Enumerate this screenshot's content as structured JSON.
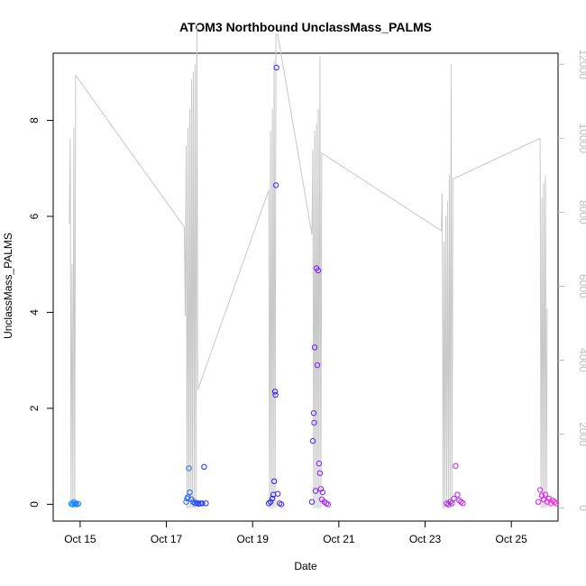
{
  "chart_data": {
    "type": "scatter",
    "title": "ATOM3 Northbound UnclassMass_PALMS",
    "xlabel": "Date",
    "ylabel": "UnclassMass_PALMS",
    "x_ticks": [
      "Oct 15",
      "Oct 17",
      "Oct 19",
      "Oct 21",
      "Oct 23",
      "Oct 25"
    ],
    "y_ticks": [
      "0",
      "2",
      "4",
      "6",
      "8"
    ],
    "y2_ticks": [
      "0",
      "2000",
      "4000",
      "6000",
      "8000",
      "10000",
      "12000"
    ],
    "xlim": [
      "Oct 14 9:00",
      "Oct 26 2:00"
    ],
    "ylim": [
      -0.35,
      9.4
    ],
    "y2lim": [
      -350,
      12300
    ],
    "right_axis_series": "altitude",
    "colors": {
      "points_start": "#1ea0ff",
      "points_mid1": "#1e1eff",
      "points_mid2": "#9b1eff",
      "points_end": "#ff1ee6",
      "altitude_line": "#c8c8c8",
      "axis": "#000000",
      "right_axis": "#bdbdbd"
    },
    "series": [
      {
        "kind": "points",
        "marker": "open-circle",
        "points": [
          {
            "x": "Oct 14 19:00",
            "y": 0.01
          },
          {
            "x": "Oct 14 19:30",
            "y": 0.02
          },
          {
            "x": "Oct 14 20:00",
            "y": 0.0
          },
          {
            "x": "Oct 14 20:30",
            "y": 0.05
          },
          {
            "x": "Oct 14 21:00",
            "y": 0.01
          },
          {
            "x": "Oct 14 21:30",
            "y": 0.02
          },
          {
            "x": "Oct 14 22:00",
            "y": 0.0
          },
          {
            "x": "Oct 14 23:00",
            "y": 0.01
          },
          {
            "x": "Oct 17 11:00",
            "y": 0.05
          },
          {
            "x": "Oct 17 11:30",
            "y": 0.12
          },
          {
            "x": "Oct 17 12:00",
            "y": 0.15
          },
          {
            "x": "Oct 17 12:30",
            "y": 0.75
          },
          {
            "x": "Oct 17 13:00",
            "y": 0.25
          },
          {
            "x": "Oct 17 14:00",
            "y": 0.1
          },
          {
            "x": "Oct 17 15:00",
            "y": 0.05
          },
          {
            "x": "Oct 17 16:00",
            "y": 0.02
          },
          {
            "x": "Oct 17 17:00",
            "y": 0.03
          },
          {
            "x": "Oct 17 18:00",
            "y": 0.01
          },
          {
            "x": "Oct 17 19:00",
            "y": 0.02
          },
          {
            "x": "Oct 17 20:00",
            "y": 0.02
          },
          {
            "x": "Oct 17 21:00",
            "y": 0.78
          },
          {
            "x": "Oct 17 22:00",
            "y": 0.02
          },
          {
            "x": "Oct 19 9:00",
            "y": 0.02
          },
          {
            "x": "Oct 19 10:00",
            "y": 0.05
          },
          {
            "x": "Oct 19 11:00",
            "y": 0.12
          },
          {
            "x": "Oct 19 11:30",
            "y": 0.2
          },
          {
            "x": "Oct 19 12:00",
            "y": 0.48
          },
          {
            "x": "Oct 19 12:30",
            "y": 2.35
          },
          {
            "x": "Oct 19 12:45",
            "y": 2.28
          },
          {
            "x": "Oct 19 13:00",
            "y": 6.65
          },
          {
            "x": "Oct 19 13:15",
            "y": 9.1
          },
          {
            "x": "Oct 19 14:00",
            "y": 0.22
          },
          {
            "x": "Oct 19 15:00",
            "y": 0.02
          },
          {
            "x": "Oct 19 16:00",
            "y": 0.0
          },
          {
            "x": "Oct 20 9:00",
            "y": 0.05
          },
          {
            "x": "Oct 20 9:30",
            "y": 1.32
          },
          {
            "x": "Oct 20 10:00",
            "y": 1.9
          },
          {
            "x": "Oct 20 10:15",
            "y": 1.7
          },
          {
            "x": "Oct 20 10:30",
            "y": 3.27
          },
          {
            "x": "Oct 20 11:00",
            "y": 0.28
          },
          {
            "x": "Oct 20 11:30",
            "y": 4.92
          },
          {
            "x": "Oct 20 12:00",
            "y": 2.9
          },
          {
            "x": "Oct 20 12:30",
            "y": 4.87
          },
          {
            "x": "Oct 20 13:00",
            "y": 0.85
          },
          {
            "x": "Oct 20 13:30",
            "y": 0.65
          },
          {
            "x": "Oct 20 14:00",
            "y": 0.32
          },
          {
            "x": "Oct 20 14:30",
            "y": 0.1
          },
          {
            "x": "Oct 20 15:00",
            "y": 0.25
          },
          {
            "x": "Oct 20 16:00",
            "y": 0.05
          },
          {
            "x": "Oct 20 17:00",
            "y": 0.02
          },
          {
            "x": "Oct 20 18:00",
            "y": 0.0
          },
          {
            "x": "Oct 23 12:00",
            "y": 0.02
          },
          {
            "x": "Oct 23 13:00",
            "y": 0.0
          },
          {
            "x": "Oct 23 14:00",
            "y": 0.05
          },
          {
            "x": "Oct 23 15:00",
            "y": 0.02
          },
          {
            "x": "Oct 23 16:00",
            "y": 0.12
          },
          {
            "x": "Oct 23 17:00",
            "y": 0.8
          },
          {
            "x": "Oct 23 18:00",
            "y": 0.2
          },
          {
            "x": "Oct 23 19:00",
            "y": 0.08
          },
          {
            "x": "Oct 23 20:00",
            "y": 0.05
          },
          {
            "x": "Oct 23 21:00",
            "y": 0.02
          },
          {
            "x": "Oct 25 15:00",
            "y": 0.05
          },
          {
            "x": "Oct 25 16:00",
            "y": 0.3
          },
          {
            "x": "Oct 25 17:00",
            "y": 0.18
          },
          {
            "x": "Oct 25 18:00",
            "y": 0.1
          },
          {
            "x": "Oct 25 19:00",
            "y": 0.2
          },
          {
            "x": "Oct 25 20:00",
            "y": 0.05
          },
          {
            "x": "Oct 25 21:00",
            "y": 0.12
          },
          {
            "x": "Oct 25 22:00",
            "y": 0.02
          },
          {
            "x": "Oct 25 23:00",
            "y": 0.08
          },
          {
            "x": "Oct 26 0:00",
            "y": 0.05
          },
          {
            "x": "Oct 26 1:00",
            "y": 0.02
          }
        ]
      },
      {
        "kind": "line",
        "axis": "right",
        "points": [
          {
            "x": "Oct 14 18:00",
            "y": 7700
          },
          {
            "x": "Oct 14 18:30",
            "y": 10000
          },
          {
            "x": "Oct 14 19:00",
            "y": 0
          },
          {
            "x": "Oct 14 19:30",
            "y": 6600
          },
          {
            "x": "Oct 14 20:00",
            "y": 0
          },
          {
            "x": "Oct 14 20:30",
            "y": 10300
          },
          {
            "x": "Oct 14 21:00",
            "y": 0
          },
          {
            "x": "Oct 14 21:30",
            "y": 11700
          },
          {
            "x": "Oct 17 10:00",
            "y": 7600
          },
          {
            "x": "Oct 17 10:30",
            "y": 5200
          },
          {
            "x": "Oct 17 11:00",
            "y": 9800
          },
          {
            "x": "Oct 17 11:30",
            "y": 0
          },
          {
            "x": "Oct 17 12:00",
            "y": 10300
          },
          {
            "x": "Oct 17 12:30",
            "y": 0
          },
          {
            "x": "Oct 17 13:00",
            "y": 10800
          },
          {
            "x": "Oct 17 13:30",
            "y": 0
          },
          {
            "x": "Oct 17 14:00",
            "y": 11600
          },
          {
            "x": "Oct 17 14:30",
            "y": 0
          },
          {
            "x": "Oct 17 15:00",
            "y": 11800
          },
          {
            "x": "Oct 17 15:30",
            "y": 0
          },
          {
            "x": "Oct 17 16:00",
            "y": 12000
          },
          {
            "x": "Oct 17 16:30",
            "y": 0
          },
          {
            "x": "Oct 17 17:00",
            "y": 13100
          },
          {
            "x": "Oct 17 17:30",
            "y": 3200
          },
          {
            "x": "Oct 19 9:00",
            "y": 8600
          },
          {
            "x": "Oct 19 9:30",
            "y": 0
          },
          {
            "x": "Oct 19 10:00",
            "y": 10200
          },
          {
            "x": "Oct 19 10:30",
            "y": 0
          },
          {
            "x": "Oct 19 11:00",
            "y": 10800
          },
          {
            "x": "Oct 19 11:30",
            "y": 0
          },
          {
            "x": "Oct 19 12:00",
            "y": 12100
          },
          {
            "x": "Oct 19 12:30",
            "y": 0
          },
          {
            "x": "Oct 19 13:00",
            "y": 12800
          },
          {
            "x": "Oct 19 14:00",
            "y": 12800
          },
          {
            "x": "Oct 20 9:00",
            "y": 7400
          },
          {
            "x": "Oct 20 9:30",
            "y": 9700
          },
          {
            "x": "Oct 20 10:00",
            "y": 0
          },
          {
            "x": "Oct 20 10:30",
            "y": 10200
          },
          {
            "x": "Oct 20 11:00",
            "y": 0
          },
          {
            "x": "Oct 20 11:30",
            "y": 10400
          },
          {
            "x": "Oct 20 12:00",
            "y": 0
          },
          {
            "x": "Oct 20 12:30",
            "y": 10800
          },
          {
            "x": "Oct 20 13:00",
            "y": 0
          },
          {
            "x": "Oct 20 13:30",
            "y": 12200
          },
          {
            "x": "Oct 20 14:00",
            "y": 0
          },
          {
            "x": "Oct 20 14:30",
            "y": 9600
          },
          {
            "x": "Oct 23 9:00",
            "y": 7500
          },
          {
            "x": "Oct 23 9:30",
            "y": 8500
          },
          {
            "x": "Oct 23 10:00",
            "y": 0
          },
          {
            "x": "Oct 23 10:30",
            "y": 7200
          },
          {
            "x": "Oct 23 11:00",
            "y": 0
          },
          {
            "x": "Oct 23 11:30",
            "y": 7900
          },
          {
            "x": "Oct 23 12:00",
            "y": 0
          },
          {
            "x": "Oct 23 12:30",
            "y": 8300
          },
          {
            "x": "Oct 23 13:00",
            "y": 0
          },
          {
            "x": "Oct 23 13:30",
            "y": 9000
          },
          {
            "x": "Oct 23 14:00",
            "y": 0
          },
          {
            "x": "Oct 23 14:30",
            "y": 12000
          },
          {
            "x": "Oct 23 15:00",
            "y": 0
          },
          {
            "x": "Oct 23 15:30",
            "y": 8900
          },
          {
            "x": "Oct 25 16:00",
            "y": 10000
          },
          {
            "x": "Oct 25 16:30",
            "y": 0
          },
          {
            "x": "Oct 25 17:00",
            "y": 8400
          },
          {
            "x": "Oct 25 17:30",
            "y": 0
          },
          {
            "x": "Oct 25 18:00",
            "y": 8800
          },
          {
            "x": "Oct 25 18:30",
            "y": 0
          },
          {
            "x": "Oct 25 19:00",
            "y": 9000
          },
          {
            "x": "Oct 25 19:30",
            "y": 0
          },
          {
            "x": "Oct 25 20:00",
            "y": 5400
          }
        ]
      }
    ]
  }
}
